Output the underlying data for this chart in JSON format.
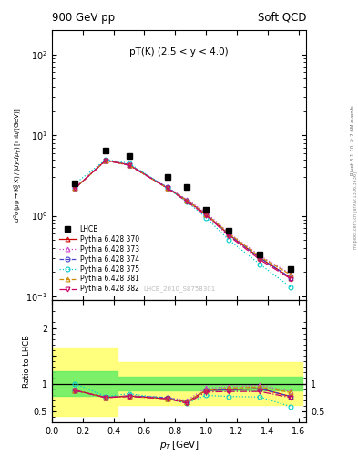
{
  "title_left": "900 GeV pp",
  "title_right": "Soft QCD",
  "annotation": "pT(K) (2.5 < y < 4.0)",
  "watermark": "LHCB_2010_S8758301",
  "right_label": "Rivet 3.1.10, ≥ 2.6M events",
  "right_label2": "mcplots.cern.ch [arXiv:1306.3436]",
  "xlabel": "p_{T} [GeV]",
  "ylabel": "d^{2}#sigma(pp#rightarrowK^{0}_{S} X) / (dydp_{T}) [mb/(GeV)]",
  "ylabel_ratio": "Ratio to LHCB",
  "lhcb_x": [
    0.15,
    0.35,
    0.5,
    0.75,
    0.875,
    1.0,
    1.15,
    1.35,
    1.55
  ],
  "lhcb_y": [
    2.5,
    6.5,
    5.5,
    3.0,
    2.3,
    1.2,
    0.65,
    0.33,
    0.22
  ],
  "pt_x": [
    0.15,
    0.35,
    0.5,
    0.75,
    0.875,
    1.0,
    1.15,
    1.35,
    1.55
  ],
  "py370_y": [
    2.2,
    4.9,
    4.3,
    2.2,
    1.55,
    1.05,
    0.58,
    0.3,
    0.17
  ],
  "py373_y": [
    2.2,
    4.9,
    4.3,
    2.25,
    1.6,
    1.1,
    0.61,
    0.32,
    0.19
  ],
  "py374_y": [
    2.2,
    4.9,
    4.3,
    2.25,
    1.55,
    1.05,
    0.58,
    0.3,
    0.17
  ],
  "py375_y": [
    2.5,
    5.0,
    4.5,
    2.2,
    1.5,
    0.95,
    0.5,
    0.25,
    0.13
  ],
  "py381_y": [
    2.2,
    4.85,
    4.25,
    2.2,
    1.55,
    1.05,
    0.6,
    0.31,
    0.185
  ],
  "py382_y": [
    2.2,
    4.85,
    4.25,
    2.2,
    1.5,
    1.02,
    0.56,
    0.285,
    0.165
  ],
  "ratio370": [
    0.88,
    0.75,
    0.78,
    0.73,
    0.67,
    0.88,
    0.89,
    0.91,
    0.77
  ],
  "ratio373": [
    0.88,
    0.75,
    0.78,
    0.75,
    0.7,
    0.92,
    0.94,
    0.97,
    0.86
  ],
  "ratio374": [
    0.88,
    0.75,
    0.78,
    0.75,
    0.67,
    0.88,
    0.89,
    0.91,
    0.77
  ],
  "ratio375": [
    1.0,
    0.77,
    0.82,
    0.73,
    0.65,
    0.79,
    0.77,
    0.76,
    0.59
  ],
  "ratio381": [
    0.88,
    0.75,
    0.77,
    0.73,
    0.67,
    0.88,
    0.92,
    0.94,
    0.84
  ],
  "ratio382": [
    0.88,
    0.75,
    0.77,
    0.73,
    0.65,
    0.85,
    0.86,
    0.86,
    0.75
  ],
  "band_edges": [
    0.0,
    0.25,
    0.425,
    0.625,
    1.625
  ],
  "band_green_lo": [
    0.78,
    0.78,
    0.88,
    0.88,
    0.88
  ],
  "band_green_hi": [
    1.22,
    1.22,
    1.12,
    1.12,
    1.12
  ],
  "band_yellow_lo": [
    0.42,
    0.42,
    0.62,
    0.62,
    0.62
  ],
  "band_yellow_hi": [
    1.65,
    1.65,
    1.38,
    1.38,
    1.38
  ],
  "color_370": "#cc0000",
  "color_373": "#cc44cc",
  "color_374": "#4444cc",
  "color_375": "#00cccc",
  "color_381": "#cc8800",
  "color_382": "#cc0066",
  "ylim_main": [
    0.09,
    200
  ],
  "ylim_ratio": [
    0.3,
    2.5
  ],
  "xlim": [
    0.0,
    1.65
  ]
}
